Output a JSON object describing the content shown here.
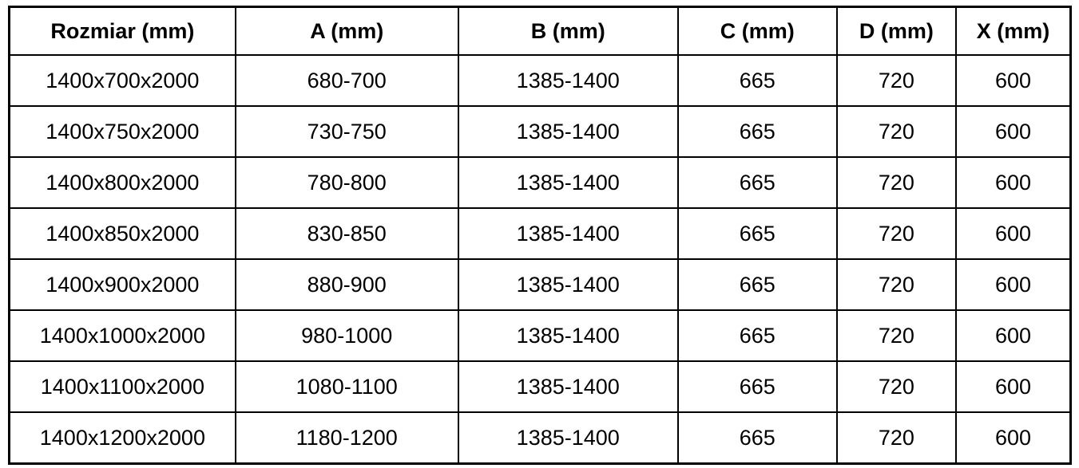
{
  "colors": {
    "border": "#000000",
    "background": "#ffffff",
    "text": "#000000"
  },
  "table": {
    "columns": [
      {
        "label": "Rozmiar (mm)"
      },
      {
        "label": "A (mm)"
      },
      {
        "label": "B (mm)"
      },
      {
        "label": "C (mm)"
      },
      {
        "label": "D (mm)"
      },
      {
        "label": "X (mm)"
      }
    ],
    "rows": [
      [
        "1400x700x2000",
        "680-700",
        "1385-1400",
        "665",
        "720",
        "600"
      ],
      [
        "1400x750x2000",
        "730-750",
        "1385-1400",
        "665",
        "720",
        "600"
      ],
      [
        "1400x800x2000",
        "780-800",
        "1385-1400",
        "665",
        "720",
        "600"
      ],
      [
        "1400x850x2000",
        "830-850",
        "1385-1400",
        "665",
        "720",
        "600"
      ],
      [
        "1400x900x2000",
        "880-900",
        "1385-1400",
        "665",
        "720",
        "600"
      ],
      [
        "1400x1000x2000",
        "980-1000",
        "1385-1400",
        "665",
        "720",
        "600"
      ],
      [
        "1400x1100x2000",
        "1080-1100",
        "1385-1400",
        "665",
        "720",
        "600"
      ],
      [
        "1400x1200x2000",
        "1180-1200",
        "1385-1400",
        "665",
        "720",
        "600"
      ]
    ]
  }
}
